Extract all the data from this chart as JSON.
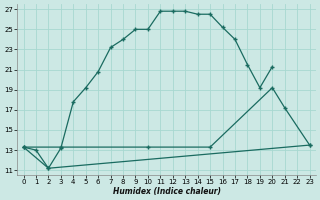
{
  "xlabel": "Humidex (Indice chaleur)",
  "bg_color": "#cce8e4",
  "grid_color": "#a8d8d0",
  "line_color": "#1a6b60",
  "xlim": [
    -0.5,
    23.5
  ],
  "ylim": [
    10.5,
    27.5
  ],
  "xticks": [
    0,
    1,
    2,
    3,
    4,
    5,
    6,
    7,
    8,
    9,
    10,
    11,
    12,
    13,
    14,
    15,
    16,
    17,
    18,
    19,
    20,
    21,
    22,
    23
  ],
  "yticks": [
    11,
    13,
    15,
    17,
    19,
    21,
    23,
    25,
    27
  ],
  "line1_x": [
    0,
    1,
    2,
    3,
    4,
    5,
    6,
    7,
    8,
    9,
    10,
    11,
    12,
    13,
    14,
    15,
    16,
    17,
    18,
    19,
    20
  ],
  "line1_y": [
    13.3,
    13.0,
    11.2,
    13.2,
    17.8,
    19.2,
    20.8,
    23.2,
    24.0,
    25.0,
    25.0,
    26.8,
    26.8,
    26.8,
    26.5,
    26.5,
    25.2,
    24.0,
    21.5,
    19.2,
    21.3
  ],
  "line2_x": [
    0,
    3,
    10,
    15,
    20,
    21,
    23
  ],
  "line2_y": [
    13.3,
    13.3,
    13.3,
    13.3,
    19.2,
    17.2,
    13.5
  ],
  "line3_x": [
    0,
    2,
    23
  ],
  "line3_y": [
    13.3,
    11.2,
    13.5
  ]
}
